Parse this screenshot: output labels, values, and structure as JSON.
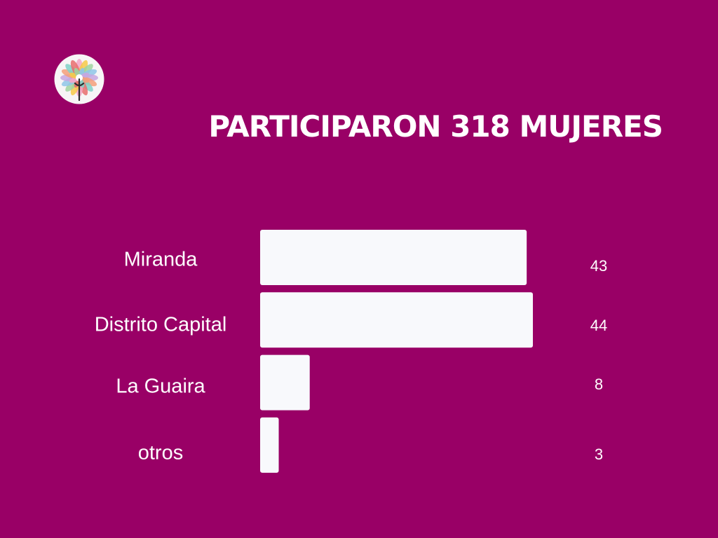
{
  "theme": {
    "background": "#990066",
    "bar_color": "#f8f9fc",
    "text_color": "#ffffff"
  },
  "logo": {
    "icon": "lotus-flower-logo",
    "petal_colors": [
      "#f4a6c6",
      "#f7c948",
      "#9fd3a0",
      "#8fc6e8",
      "#c7a6e0",
      "#f59f7a",
      "#7fd1c7",
      "#e86d6d"
    ]
  },
  "title": "PARTICIPARON 318 MUJERES",
  "chart_data": {
    "type": "bar",
    "orientation": "horizontal",
    "categories": [
      "Miranda",
      "Distrito Capital",
      "La Guaira",
      "otros"
    ],
    "values": [
      43,
      44,
      8,
      3
    ],
    "value_labels": [
      "43",
      "44",
      "8",
      "3"
    ],
    "title": "",
    "xlabel": "",
    "ylabel": "",
    "grid": false,
    "legend": "none"
  }
}
